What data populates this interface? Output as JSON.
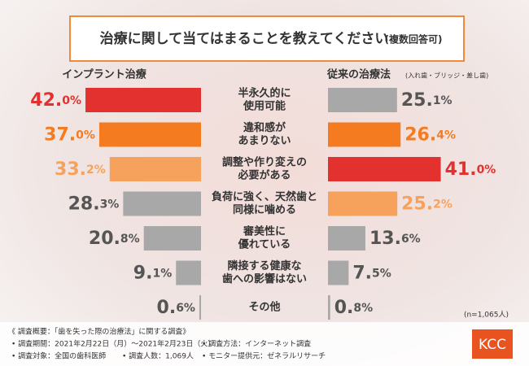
{
  "chart_data": {
    "type": "butterfly-bar",
    "title": "治療に関して当てはまることを教えてください",
    "subtitle": "(複数回答可)",
    "categories": [
      [
        "半永久的に",
        "使用可能"
      ],
      [
        "違和感が",
        "あまりない"
      ],
      [
        "調整や作り変えの",
        "必要がある"
      ],
      [
        "負荷に強く、天然歯と",
        "同様に噛める"
      ],
      [
        "審美性に",
        "優れている"
      ],
      [
        "隣接する健康な",
        "歯への影響はない"
      ],
      [
        "その他"
      ]
    ],
    "series": [
      {
        "name": "インプラント治療",
        "side": "left",
        "values": [
          42.0,
          37.0,
          33.2,
          28.3,
          20.8,
          9.1,
          0.6
        ],
        "value_labels": [
          "42.0%",
          "37.0%",
          "33.2%",
          "28.3%",
          "20.8%",
          "9.1%",
          "0.6%"
        ],
        "colors": [
          "#e2312f",
          "#f47b20",
          "#f7a25c",
          "#a8a8a8",
          "#a8a8a8",
          "#a8a8a8",
          "#a8a8a8"
        ],
        "label_colors": [
          "#e2312f",
          "#f47b20",
          "#f7a25c",
          "#555555",
          "#555555",
          "#555555",
          "#555555"
        ]
      },
      {
        "name": "従来の治療法",
        "note": "(入れ歯・ブリッジ・差し歯)",
        "side": "right",
        "values": [
          25.1,
          26.4,
          41.0,
          25.2,
          13.6,
          7.5,
          0.8
        ],
        "value_labels": [
          "25.1%",
          "26.4%",
          "41.0%",
          "25.2%",
          "13.6%",
          "7.5%",
          "0.8%"
        ],
        "colors": [
          "#a8a8a8",
          "#f47b20",
          "#e2312f",
          "#f7a25c",
          "#a8a8a8",
          "#a8a8a8",
          "#a8a8a8"
        ],
        "label_colors": [
          "#555555",
          "#f47b20",
          "#e2312f",
          "#f7a25c",
          "#555555",
          "#555555",
          "#555555"
        ]
      }
    ],
    "sample_note": "(n=1,065人)",
    "footer": {
      "heading": "《 調査概要：「歯を失った際の治療法」に関する調査》",
      "items": [
        "• 調査期間：2021年2月22日（月）～2021年2月23日（火）",
        "• 調査方法：インターネット調査",
        "• 調査対象：全国の歯科医師",
        "• 調査人数：1,069人",
        "• モニター提供元：ゼネラルリサーチ"
      ],
      "logo": "KCC"
    }
  }
}
